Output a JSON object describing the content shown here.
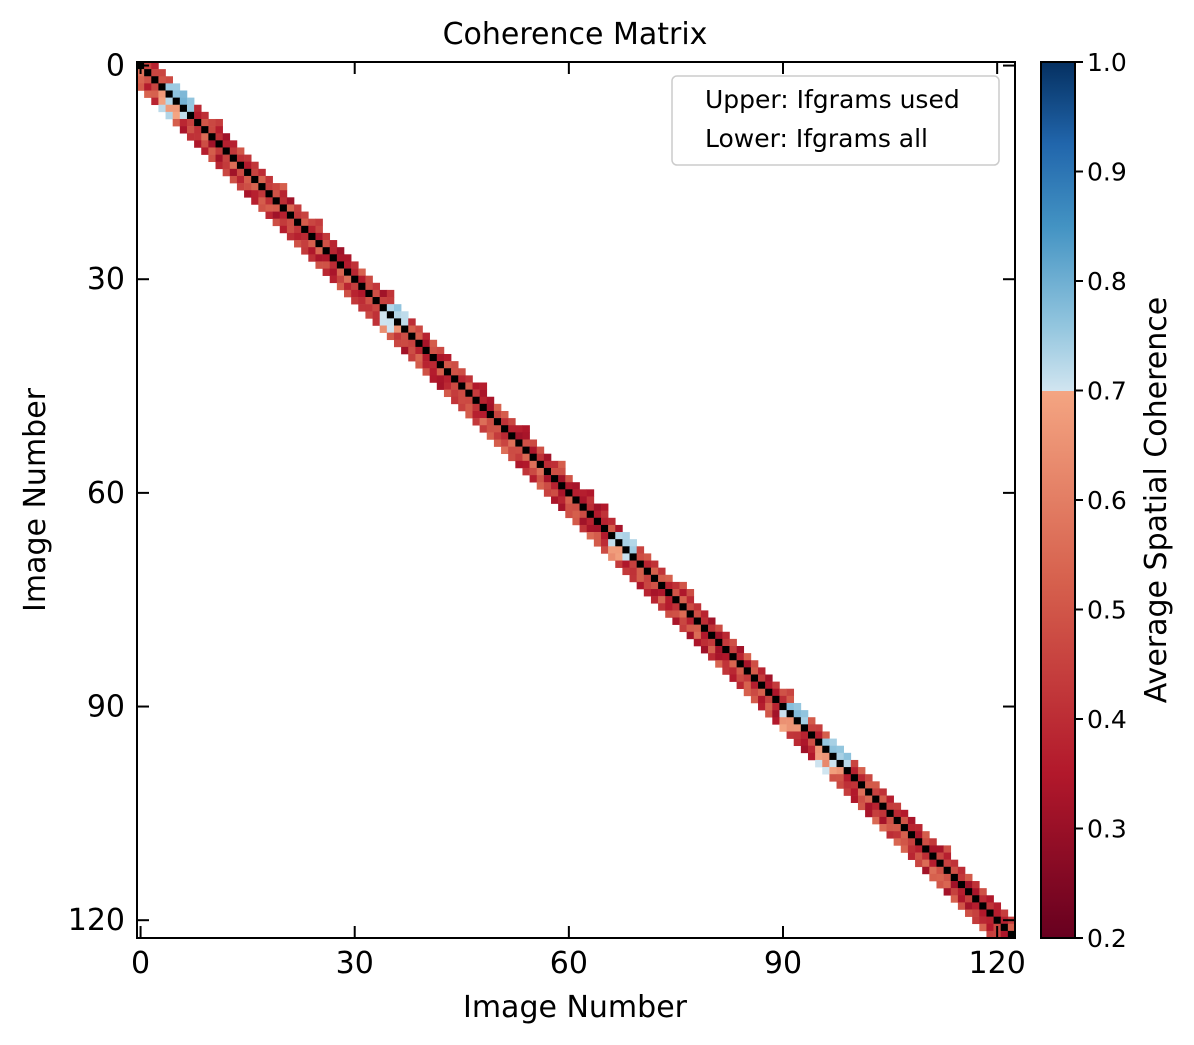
{
  "chart_data": {
    "type": "heatmap",
    "title": "Coherence Matrix",
    "xlabel": "Image Number",
    "ylabel": "Image Number",
    "n_images": 123,
    "x_ticks": [
      0,
      30,
      60,
      90,
      120
    ],
    "y_ticks": [
      0,
      30,
      60,
      90,
      120
    ],
    "y_inverted": true,
    "diagonal_color": "#000000",
    "legend": {
      "placement": "top-right",
      "entries": [
        "Upper: Ifgrams used",
        "Lower: Ifgrams all"
      ]
    },
    "colorbar": {
      "label": "Average Spatial Coherence",
      "range": [
        0.2,
        1.0
      ],
      "ticks": [
        0.2,
        0.3,
        0.4,
        0.5,
        0.6,
        0.7,
        0.8,
        0.9,
        1.0
      ],
      "colormap": "RdBu",
      "colors_low": [
        "#67001f",
        "#b2182b",
        "#d6604d",
        "#f4a582"
      ],
      "colors_high": [
        "#d1e5f0",
        "#92c5de",
        "#4393c3",
        "#2166ac",
        "#053061"
      ],
      "break_value": 0.7
    },
    "network": {
      "max_neighbor_span_all": 3,
      "max_neighbor_span_used": 2,
      "typical_coherence": 0.4,
      "bright_segments": [
        {
          "from": 3,
          "to": 7,
          "coherence": 0.78
        },
        {
          "from": 34,
          "to": 37,
          "coherence": 0.75
        },
        {
          "from": 66,
          "to": 69,
          "coherence": 0.76
        },
        {
          "from": 90,
          "to": 93,
          "coherence": 0.76
        },
        {
          "from": 95,
          "to": 99,
          "coherence": 0.75
        }
      ]
    }
  }
}
